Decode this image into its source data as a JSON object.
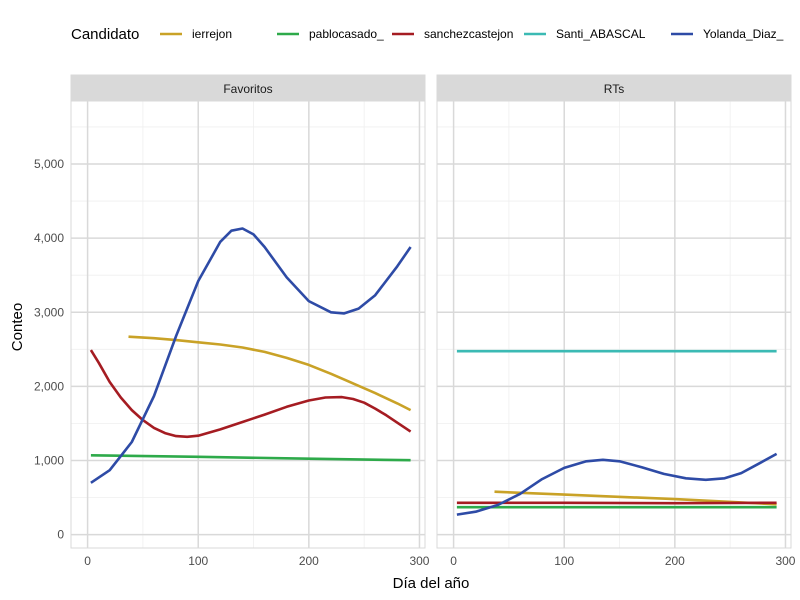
{
  "chart_data": {
    "type": "line",
    "xlabel": "Día del año",
    "ylabel": "Conteo",
    "xlim": [
      -15,
      305
    ],
    "ylim": [
      -180,
      5850
    ],
    "x_ticks": [
      0,
      100,
      200,
      300
    ],
    "x_tick_labels": [
      "0",
      "100",
      "200",
      "300"
    ],
    "y_ticks": [
      0,
      1000,
      2000,
      3000,
      4000,
      5000
    ],
    "y_tick_labels": [
      "0",
      "1,000",
      "2,000",
      "3,000",
      "4,000",
      "5,000"
    ],
    "grid": true,
    "legend": {
      "title": "Candidato",
      "position": "top"
    },
    "series_meta": [
      {
        "name": "ierrejon",
        "color": "#C9A227"
      },
      {
        "name": "pablocasado_",
        "color": "#2EAA4A"
      },
      {
        "name": "sanchezcastejon",
        "color": "#A51C22"
      },
      {
        "name": "Santi_ABASCAL",
        "color": "#3BBAB4"
      },
      {
        "name": "Yolanda_Diaz_",
        "color": "#2E4BA6"
      }
    ],
    "panels": [
      {
        "title": "Favoritos",
        "series": [
          {
            "name": "ierrejon",
            "x": [
              37,
              60,
              80,
              100,
              120,
              140,
              160,
              180,
              200,
              220,
              240,
              260,
              280,
              292
            ],
            "y": [
              2670,
              2650,
              2625,
              2595,
              2565,
              2525,
              2465,
              2385,
              2290,
              2170,
              2040,
              1910,
              1770,
              1680
            ]
          },
          {
            "name": "pablocasado_",
            "x": [
              3,
              100,
              200,
              292
            ],
            "y": [
              1070,
              1050,
              1025,
              1005
            ]
          },
          {
            "name": "sanchezcastejon",
            "x": [
              3,
              10,
              20,
              30,
              40,
              50,
              60,
              70,
              80,
              90,
              100,
              120,
              140,
              160,
              180,
              200,
              215,
              230,
              240,
              250,
              260,
              270,
              280,
              292
            ],
            "y": [
              2490,
              2320,
              2060,
              1850,
              1680,
              1545,
              1440,
              1370,
              1330,
              1320,
              1335,
              1420,
              1520,
              1620,
              1725,
              1810,
              1850,
              1855,
              1830,
              1780,
              1700,
              1610,
              1510,
              1390
            ]
          },
          {
            "name": "Yolanda_Diaz_",
            "x": [
              3,
              20,
              40,
              60,
              80,
              100,
              120,
              130,
              140,
              150,
              160,
              180,
              200,
              220,
              232,
              245,
              260,
              280,
              292
            ],
            "y": [
              700,
              870,
              1250,
              1870,
              2680,
              3420,
              3950,
              4100,
              4130,
              4050,
              3880,
              3470,
              3150,
              3000,
              2985,
              3050,
              3230,
              3620,
              3880
            ]
          }
        ]
      },
      {
        "title": "RTs",
        "series": [
          {
            "name": "ierrejon",
            "x": [
              37,
              100,
              200,
              292
            ],
            "y": [
              580,
              540,
              480,
              410
            ]
          },
          {
            "name": "pablocasado_",
            "x": [
              3,
              100,
              200,
              292
            ],
            "y": [
              370,
              370,
              370,
              370
            ]
          },
          {
            "name": "sanchezcastejon",
            "x": [
              3,
              100,
              200,
              292
            ],
            "y": [
              430,
              430,
              425,
              430
            ]
          },
          {
            "name": "Santi_ABASCAL",
            "x": [
              3,
              100,
              200,
              292
            ],
            "y": [
              2475,
              2475,
              2475,
              2475
            ]
          },
          {
            "name": "Yolanda_Diaz_",
            "x": [
              3,
              20,
              40,
              60,
              80,
              100,
              120,
              135,
              150,
              170,
              190,
              210,
              228,
              245,
              260,
              275,
              292
            ],
            "y": [
              270,
              310,
              400,
              550,
              750,
              900,
              990,
              1010,
              990,
              910,
              820,
              760,
              740,
              760,
              830,
              950,
              1090
            ]
          }
        ]
      }
    ]
  }
}
